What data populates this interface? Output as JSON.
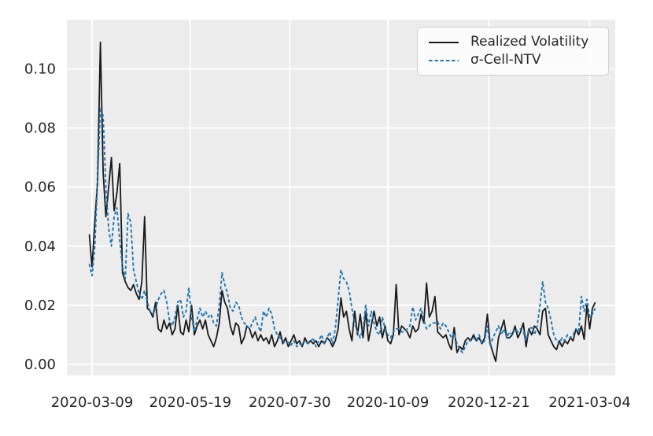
{
  "figure": {
    "background": "#ffffff",
    "plot_background": "#ececec",
    "grid_color": "#ffffff",
    "tick_label_color": "#262626"
  },
  "legend": {
    "items": [
      {
        "label": "Realized Volatility",
        "color": "#1a1a1a",
        "style": "solid"
      },
      {
        "label": "σ-Cell-NTV",
        "color": "#1f77b4",
        "style": "dashed"
      }
    ]
  },
  "chart_data": {
    "type": "line",
    "title": "",
    "xlabel": "",
    "ylabel": "",
    "grid": true,
    "legend_position": "upper right",
    "x_start_date": "2020-03-07",
    "x_step_days": 2,
    "x_tick_labels": [
      "2020-03-09",
      "2020-05-19",
      "2020-07-30",
      "2020-10-09",
      "2020-12-21",
      "2021-03-04"
    ],
    "y_ticks": [
      0.0,
      0.02,
      0.04,
      0.06,
      0.08,
      0.1
    ],
    "y_tick_labels": [
      "0.00",
      "0.02",
      "0.04",
      "0.06",
      "0.08",
      "0.10"
    ],
    "ylim": [
      -0.004,
      0.117
    ],
    "series": [
      {
        "name": "Realized Volatility",
        "color": "#1a1a1a",
        "line_style": "solid",
        "values": [
          0.044,
          0.033,
          0.048,
          0.062,
          0.109,
          0.065,
          0.05,
          0.06,
          0.07,
          0.052,
          0.058,
          0.068,
          0.031,
          0.028,
          0.026,
          0.025,
          0.027,
          0.024,
          0.022,
          0.028,
          0.05,
          0.019,
          0.018,
          0.016,
          0.021,
          0.012,
          0.011,
          0.015,
          0.012,
          0.014,
          0.01,
          0.012,
          0.02,
          0.011,
          0.01,
          0.015,
          0.011,
          0.02,
          0.01,
          0.013,
          0.015,
          0.012,
          0.015,
          0.01,
          0.008,
          0.006,
          0.009,
          0.014,
          0.025,
          0.021,
          0.019,
          0.013,
          0.01,
          0.014,
          0.013,
          0.007,
          0.009,
          0.013,
          0.012,
          0.009,
          0.011,
          0.008,
          0.01,
          0.008,
          0.009,
          0.007,
          0.01,
          0.006,
          0.008,
          0.011,
          0.007,
          0.009,
          0.006,
          0.008,
          0.01,
          0.007,
          0.008,
          0.006,
          0.009,
          0.007,
          0.008,
          0.007,
          0.008,
          0.006,
          0.008,
          0.007,
          0.009,
          0.008,
          0.006,
          0.008,
          0.012,
          0.0225,
          0.016,
          0.018,
          0.012,
          0.008,
          0.018,
          0.01,
          0.017,
          0.009,
          0.018,
          0.008,
          0.013,
          0.018,
          0.013,
          0.016,
          0.009,
          0.013,
          0.008,
          0.007,
          0.01,
          0.027,
          0.01,
          0.013,
          0.012,
          0.011,
          0.009,
          0.013,
          0.011,
          0.012,
          0.017,
          0.014,
          0.0275,
          0.016,
          0.018,
          0.023,
          0.011,
          0.01,
          0.009,
          0.01,
          0.007,
          0.005,
          0.0125,
          0.004,
          0.006,
          0.005,
          0.008,
          0.009,
          0.008,
          0.01,
          0.008,
          0.009,
          0.007,
          0.009,
          0.017,
          0.007,
          0.004,
          0.001,
          0.009,
          0.012,
          0.015,
          0.009,
          0.009,
          0.01,
          0.013,
          0.009,
          0.011,
          0.014,
          0.006,
          0.012,
          0.01,
          0.013,
          0.012,
          0.01,
          0.018,
          0.019,
          0.01,
          0.008,
          0.006,
          0.005,
          0.008,
          0.006,
          0.008,
          0.007,
          0.009,
          0.008,
          0.012,
          0.01,
          0.013,
          0.0085,
          0.02,
          0.012,
          0.019,
          0.021
        ]
      },
      {
        "name": "σ-Cell-NTV",
        "color": "#1f77b4",
        "line_style": "dashed",
        "values": [
          0.034,
          0.03,
          0.04,
          0.062,
          0.087,
          0.084,
          0.06,
          0.046,
          0.04,
          0.05,
          0.053,
          0.042,
          0.033,
          0.029,
          0.051,
          0.048,
          0.032,
          0.028,
          0.024,
          0.022,
          0.025,
          0.021,
          0.018,
          0.017,
          0.019,
          0.022,
          0.024,
          0.025,
          0.021,
          0.015,
          0.013,
          0.016,
          0.021,
          0.022,
          0.016,
          0.018,
          0.026,
          0.016,
          0.011,
          0.015,
          0.019,
          0.016,
          0.018,
          0.016,
          0.017,
          0.014,
          0.013,
          0.02,
          0.031,
          0.027,
          0.024,
          0.019,
          0.018,
          0.021,
          0.02,
          0.016,
          0.014,
          0.013,
          0.012,
          0.014,
          0.016,
          0.013,
          0.011,
          0.018,
          0.016,
          0.019,
          0.017,
          0.012,
          0.01,
          0.009,
          0.008,
          0.007,
          0.0075,
          0.0065,
          0.008,
          0.006,
          0.007,
          0.0065,
          0.008,
          0.007,
          0.0075,
          0.009,
          0.006,
          0.008,
          0.01,
          0.007,
          0.009,
          0.011,
          0.007,
          0.012,
          0.022,
          0.032,
          0.029,
          0.028,
          0.025,
          0.019,
          0.014,
          0.011,
          0.009,
          0.012,
          0.02,
          0.013,
          0.018,
          0.014,
          0.011,
          0.01,
          0.016,
          0.012,
          0.01,
          0.009,
          0.011,
          0.012,
          0.012,
          0.011,
          0.011,
          0.012,
          0.013,
          0.0195,
          0.015,
          0.017,
          0.019,
          0.015,
          0.012,
          0.013,
          0.014,
          0.014,
          0.0145,
          0.012,
          0.014,
          0.013,
          0.011,
          0.009,
          0.0105,
          0.007,
          0.005,
          0.004,
          0.006,
          0.008,
          0.008,
          0.009,
          0.008,
          0.01,
          0.007,
          0.008,
          0.013,
          0.006,
          0.009,
          0.011,
          0.013,
          0.01,
          0.012,
          0.009,
          0.011,
          0.01,
          0.012,
          0.011,
          0.012,
          0.011,
          0.008,
          0.012,
          0.0125,
          0.01,
          0.013,
          0.02,
          0.028,
          0.021,
          0.019,
          0.015,
          0.01,
          0.008,
          0.007,
          0.009,
          0.008,
          0.01,
          0.009,
          0.01,
          0.012,
          0.011,
          0.023,
          0.018,
          0.022,
          0.016,
          0.017,
          0.019
        ]
      }
    ]
  }
}
